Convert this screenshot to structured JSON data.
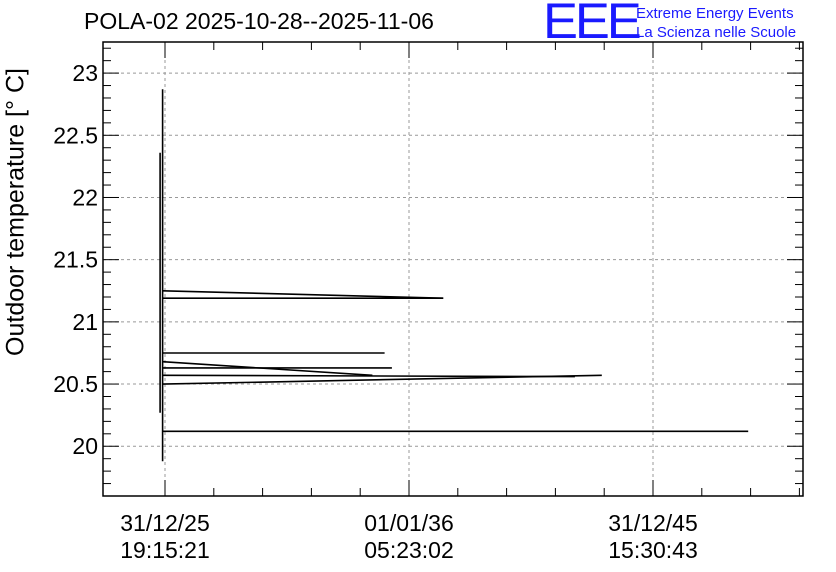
{
  "header": {
    "title": "POLA-02 2025-10-28--2025-11-06",
    "logo_mark": "EEE",
    "logo_line1": "Extreme Energy Events",
    "logo_line2": "La Scienza nelle Scuole"
  },
  "chart_data": {
    "type": "line",
    "title": "POLA-02 2025-10-28--2025-11-06",
    "xlabel": "",
    "ylabel": "Outdoor temperature [° C]",
    "ylim": [
      19.6,
      23.25
    ],
    "yticks": [
      20,
      20.5,
      21,
      21.5,
      22,
      22.5,
      23
    ],
    "xticks": [
      {
        "line1": "31/12/25",
        "line2": "19:15:21",
        "pos": 0
      },
      {
        "line1": "01/01/36",
        "line2": "05:23:02",
        "pos": 1
      },
      {
        "line1": "31/12/45",
        "line2": "15:30:43",
        "pos": 2
      }
    ],
    "xlim_ticks": [
      -0.19,
      2.6
    ],
    "grid": true,
    "colors": {
      "line": "#000000",
      "grid": "#999999",
      "logo": "#1a1aff"
    },
    "series": [
      {
        "segments": [
          [
            [
              -0.01,
              22.87
            ],
            [
              -0.01,
              19.88
            ]
          ],
          [
            [
              -0.02,
              22.36
            ],
            [
              -0.02,
              20.27
            ]
          ],
          [
            [
              -0.01,
              20.12
            ],
            [
              2.39,
              20.12
            ]
          ],
          [
            [
              -0.01,
              20.5
            ],
            [
              1.79,
              20.57
            ]
          ],
          [
            [
              -0.01,
              20.57
            ],
            [
              1.68,
              20.56
            ]
          ],
          [
            [
              -0.01,
              20.63
            ],
            [
              0.93,
              20.63
            ]
          ],
          [
            [
              -0.01,
              20.68
            ],
            [
              0.85,
              20.57
            ]
          ],
          [
            [
              -0.01,
              20.75
            ],
            [
              0.9,
              20.75
            ]
          ],
          [
            [
              -0.01,
              21.19
            ],
            [
              1.14,
              21.19
            ]
          ],
          [
            [
              -0.01,
              21.25
            ],
            [
              1.14,
              21.19
            ]
          ]
        ]
      }
    ]
  }
}
